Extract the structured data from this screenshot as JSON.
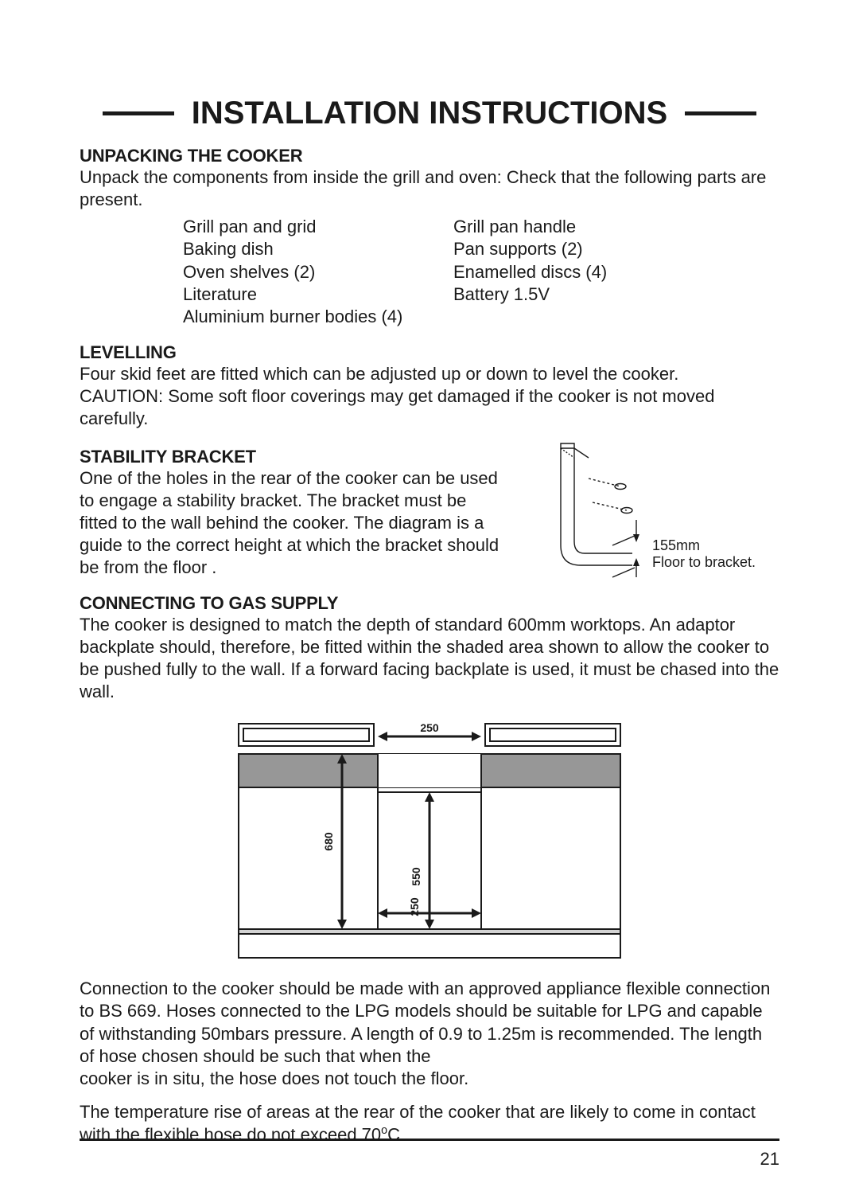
{
  "page_number": "21",
  "title": "INSTALLATION INSTRUCTIONS",
  "colors": {
    "text": "#1a1a1a",
    "bg": "#ffffff",
    "rule": "#1a1a1a",
    "diagram_stroke": "#1a1a1a",
    "diagram_fill_dark": "#979797",
    "diagram_fill_mid": "#d3d3d3"
  },
  "sections": {
    "unpacking": {
      "heading": "UNPACKING THE COOKER",
      "intro": "Unpack the components from inside the grill and oven: Check that the following parts are present.",
      "components_left": [
        "Grill pan and grid",
        "Baking dish",
        "Oven shelves (2)",
        "Literature",
        "Aluminium burner bodies (4)"
      ],
      "components_right": [
        "Grill pan handle",
        "Pan supports (2)",
        "Enamelled discs (4)",
        "Battery 1.5V"
      ]
    },
    "levelling": {
      "heading": "LEVELLING",
      "body_line1": "Four skid feet are fitted which can be adjusted up or down to level the cooker.",
      "body_line2": "CAUTION: Some soft floor coverings may get damaged if the cooker is not moved carefully."
    },
    "stability": {
      "heading": "STABILITY BRACKET",
      "body": "One of the holes in the rear of the cooker can be used to engage a stability bracket. The bracket must be fitted to the wall behind the cooker. The diagram is a guide to the correct height at which the bracket should  be from the floor .",
      "caption_line1": "155mm",
      "caption_line2": "Floor to bracket."
    },
    "gas": {
      "heading": "CONNECTING TO GAS SUPPLY",
      "body1": "The cooker is designed to match the depth of standard 600mm worktops. An adaptor backplate should, therefore, be fitted within the shaded area shown to allow the cooker to be pushed fully to the wall. If a forward facing backplate is used, it must be chased into the wall.",
      "diagram": {
        "type": "technical-diagram",
        "labels": {
          "top_width": "250",
          "full_height": "680",
          "notch_height": "550",
          "bottom_gap": "250"
        },
        "stroke": "#1a1a1a",
        "fill_wall": "#979797",
        "fill_floor": "#d3d3d3",
        "label_fontsize": 14,
        "label_weight": 700
      },
      "body2": "Connection to the cooker should be made with an approved appliance flexible connection to BS 669. Hoses connected to the LPG models should be suitable for LPG and capable of withstanding 50mbars pressure. A length of 0.9 to 1.25m is recommended. The length of hose chosen should be such that when the",
      "body2_line2": "cooker is in situ, the hose does not touch the floor.",
      "body3_pre": "The temperature rise of areas at the rear of the cooker that are likely to come in contact with the flexible hose do not exceed 70",
      "body3_sup": "o",
      "body3_post": "C."
    }
  }
}
